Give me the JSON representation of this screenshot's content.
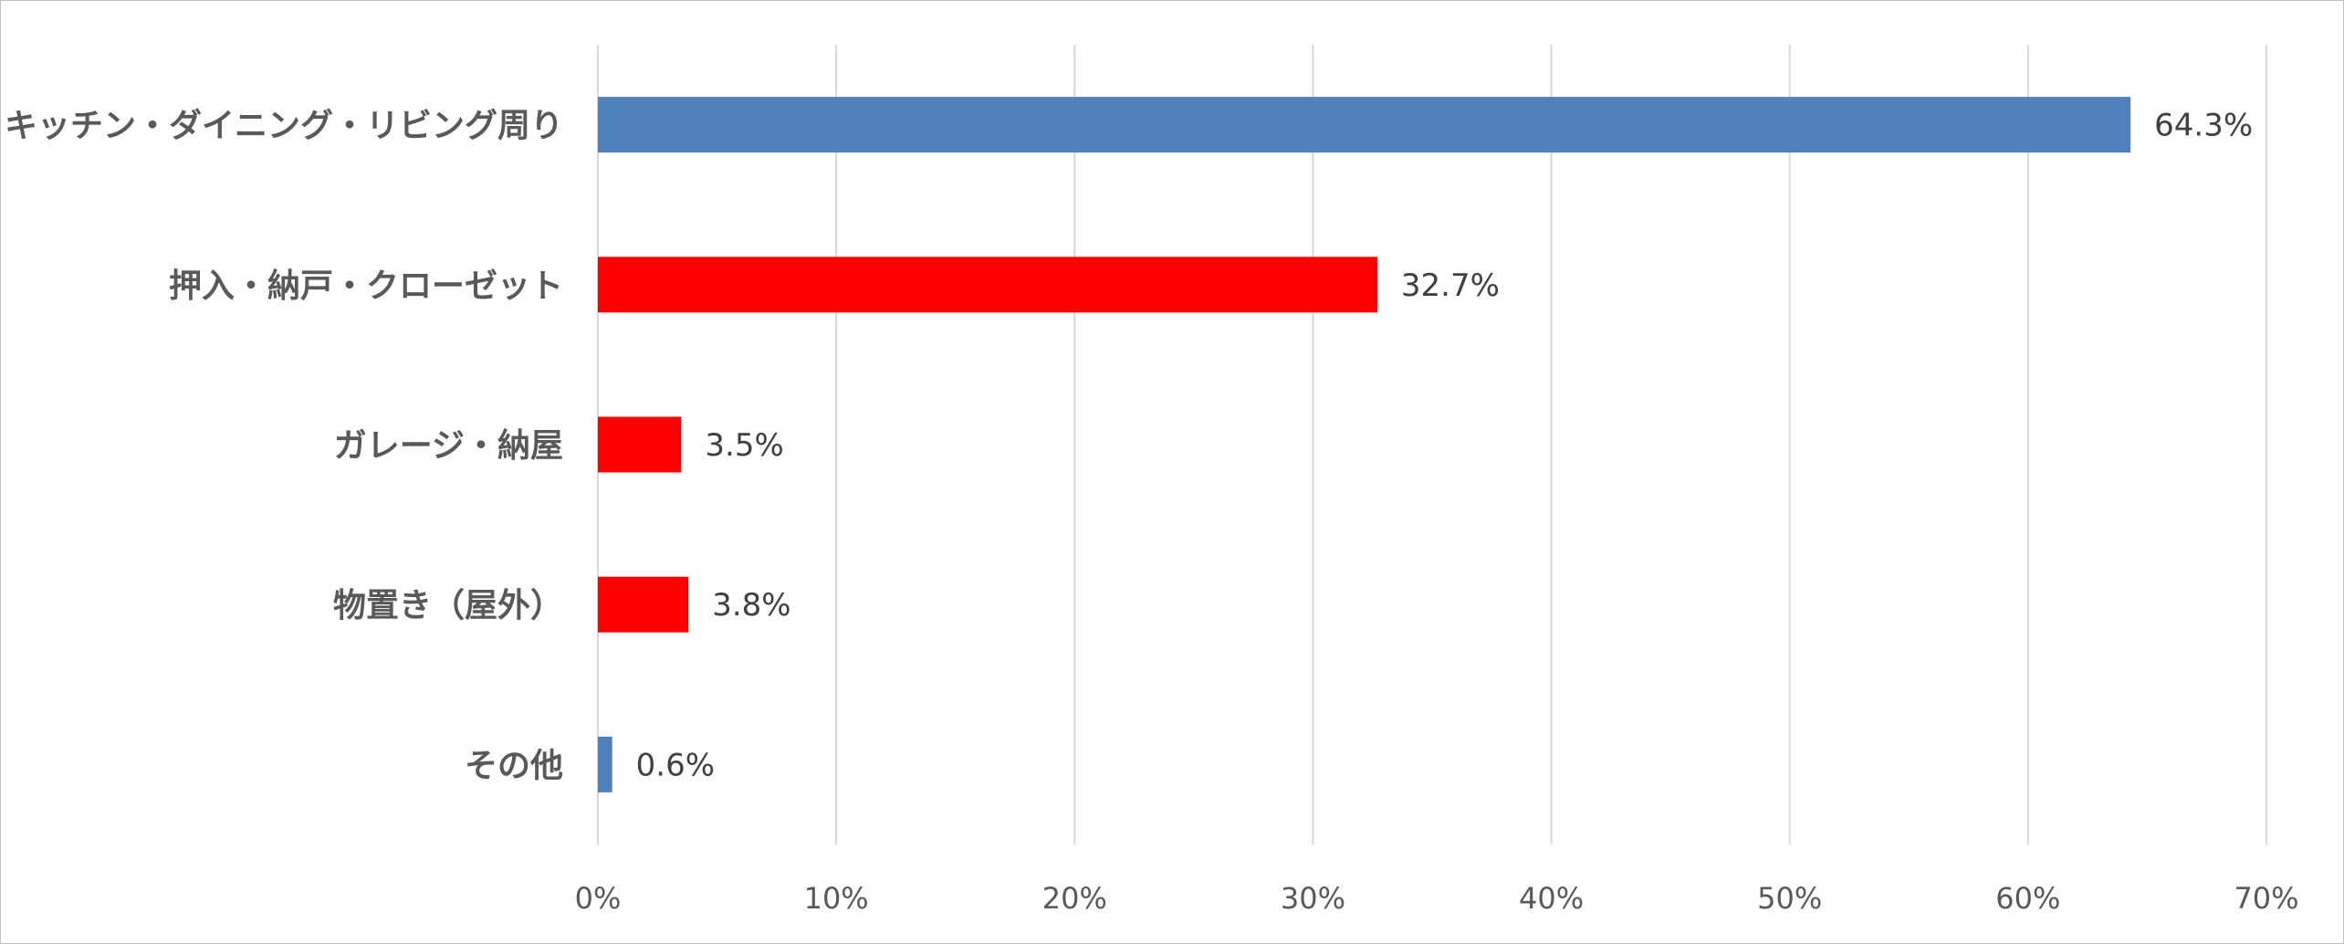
{
  "chart_data": {
    "type": "bar",
    "orientation": "horizontal",
    "categories": [
      "キッチン・ダイニング・リビング周り",
      "押入・納戸・クローゼット",
      "ガレージ・納屋",
      "物置き（屋外）",
      "その他"
    ],
    "values": [
      64.3,
      32.7,
      3.5,
      3.8,
      0.6
    ],
    "data_labels": [
      "64.3%",
      "32.7%",
      "3.5%",
      "3.8%",
      "0.6%"
    ],
    "bar_colors": [
      "#4f81bd",
      "#ff0000",
      "#ff0000",
      "#ff0000",
      "#4f81bd"
    ],
    "xlim": [
      0,
      70
    ],
    "x_ticks": [
      0,
      10,
      20,
      30,
      40,
      50,
      60,
      70
    ],
    "x_tick_labels": [
      "0%",
      "10%",
      "20%",
      "30%",
      "40%",
      "50%",
      "60%",
      "70%"
    ],
    "grid": true,
    "legend": "none",
    "title": "",
    "xlabel": "",
    "ylabel": ""
  }
}
